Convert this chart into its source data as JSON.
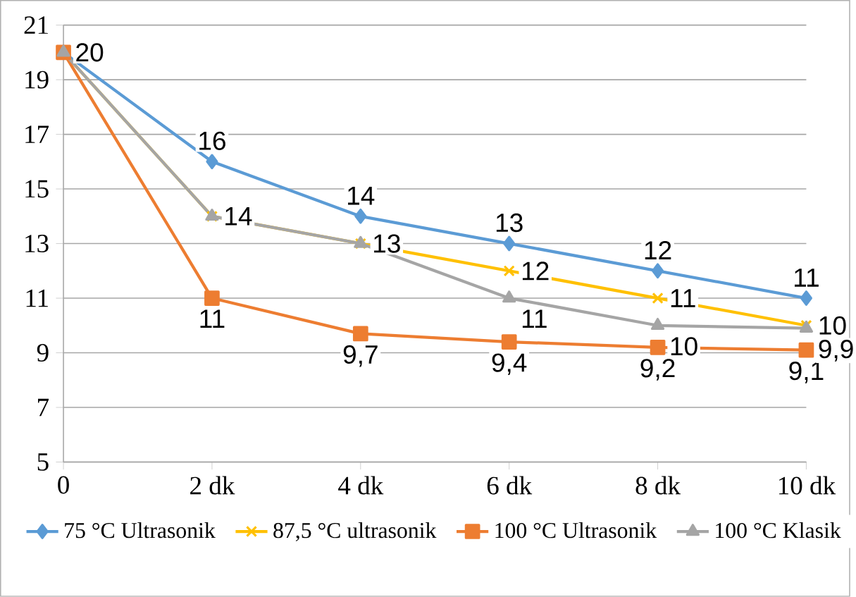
{
  "chart_data": {
    "type": "line",
    "categories": [
      "0",
      "2 dk",
      "4 dk",
      "6 dk",
      "8 dk",
      "10 dk"
    ],
    "series": [
      {
        "name": "75 °C Ultrasonik",
        "color": "#5b9bd5",
        "marker": "diamond",
        "values": [
          20,
          16,
          14,
          13,
          12,
          11
        ],
        "value_labels": [
          "20",
          "16",
          "14",
          "13",
          "12",
          "11"
        ]
      },
      {
        "name": "87,5 °C ultrasonik",
        "color": "#ffc000",
        "marker": "cross",
        "values": [
          20,
          14,
          13,
          12,
          11,
          10
        ],
        "value_labels": [
          null,
          "14",
          "13",
          "12",
          "11",
          "10"
        ]
      },
      {
        "name": "100 °C Ultrasonik",
        "color": "#ed7d31",
        "marker": "square",
        "values": [
          20,
          11,
          9.7,
          9.4,
          9.2,
          9.1
        ],
        "value_labels": [
          null,
          "11",
          "9,7",
          "9,4",
          "9,2",
          "9,1"
        ]
      },
      {
        "name": "100 °C Klasik",
        "color": "#a5a5a5",
        "marker": "triangle",
        "values": [
          20,
          14,
          13,
          11,
          10,
          9.9
        ],
        "value_labels": [
          null,
          null,
          null,
          "11",
          "10",
          "9,9"
        ]
      }
    ],
    "ylim": [
      5,
      21
    ],
    "yticks": [
      5,
      7,
      9,
      11,
      13,
      15,
      17,
      19,
      21
    ],
    "grid": "y",
    "legend": "bottom"
  }
}
